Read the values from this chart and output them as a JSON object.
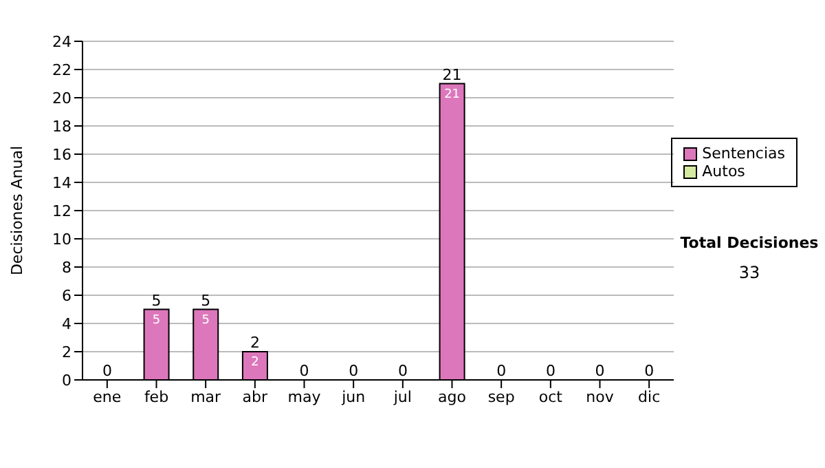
{
  "chart_data": {
    "type": "bar",
    "ylabel": "Decisiones Anual",
    "categories": [
      "ene",
      "feb",
      "mar",
      "abr",
      "may",
      "jun",
      "jul",
      "ago",
      "sep",
      "oct",
      "nov",
      "dic"
    ],
    "series": [
      {
        "name": "Sentencias",
        "color": "#dd77bb",
        "values": [
          0,
          5,
          5,
          2,
          0,
          0,
          0,
          21,
          0,
          0,
          0,
          0
        ],
        "value_labels": [
          null,
          "5",
          "5",
          "2",
          null,
          null,
          null,
          "21",
          null,
          null,
          null,
          null
        ]
      },
      {
        "name": "Autos",
        "color": "#d4eaa0",
        "values": [
          0,
          0,
          0,
          0,
          0,
          0,
          0,
          0,
          0,
          0,
          0,
          0
        ]
      }
    ],
    "stacked": true,
    "totals": [
      "0",
      "5",
      "5",
      "2",
      "0",
      "0",
      "0",
      "21",
      "0",
      "0",
      "0",
      "0"
    ],
    "ylim": [
      0,
      24
    ],
    "yticks": [
      0,
      2,
      4,
      6,
      8,
      10,
      12,
      14,
      16,
      18,
      20,
      22,
      24
    ],
    "grid": "y",
    "legend": "right",
    "annotations": [
      "Total Decisiones",
      "33"
    ]
  }
}
